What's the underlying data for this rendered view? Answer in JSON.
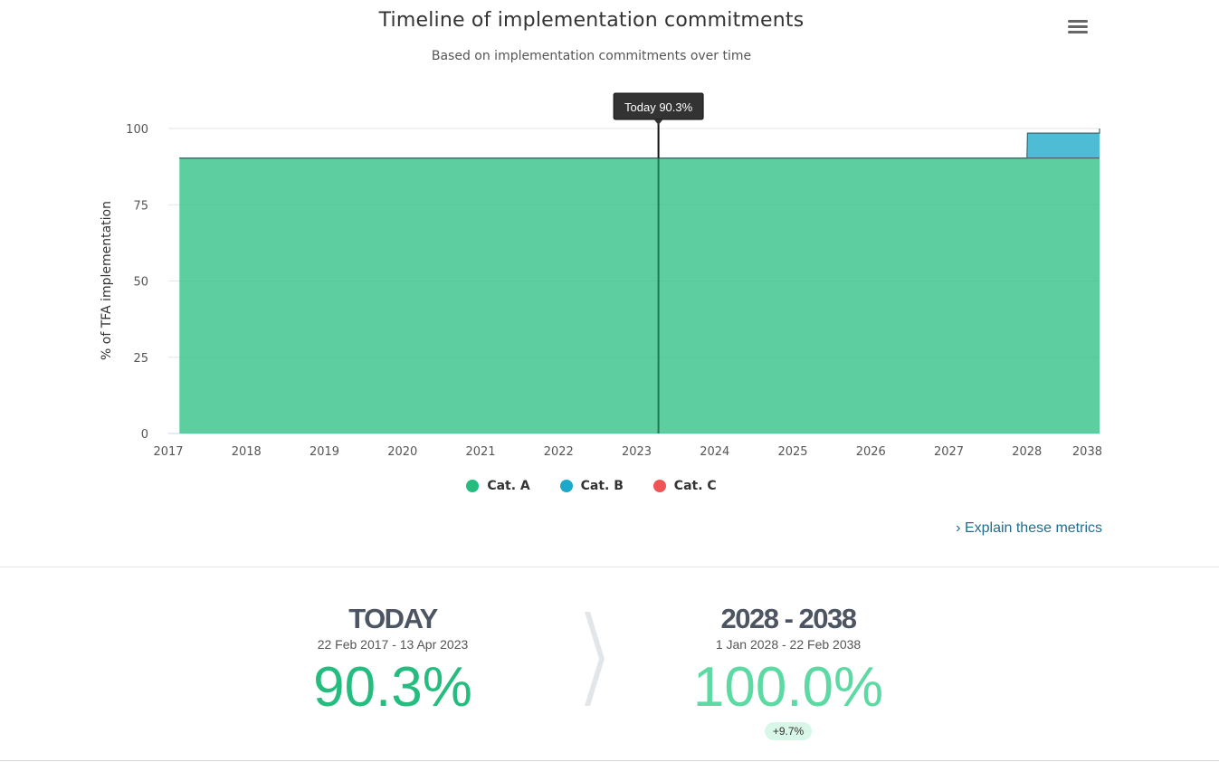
{
  "header": {
    "title": "Timeline of implementation commitments",
    "subtitle": "Based on implementation commitments over time",
    "menu_icon": "hamburger-menu-icon"
  },
  "chart_data": {
    "type": "area",
    "ylabel": "% of TFA implementation",
    "ylim": [
      0,
      100
    ],
    "yticks": [
      0,
      25,
      50,
      75,
      100
    ],
    "xtick_labels": [
      "2017",
      "2018",
      "2019",
      "2020",
      "2021",
      "2022",
      "2023",
      "2024",
      "2025",
      "2026",
      "2027",
      "2028",
      "2038"
    ],
    "grid": true,
    "stacked": true,
    "series": [
      {
        "name": "Cat. A",
        "color": "#25bd7f",
        "x": [
          "2017-02-22",
          "2028-01-01",
          "2038-02-22"
        ],
        "values": [
          90.3,
          90.3,
          90.3
        ]
      },
      {
        "name": "Cat. B",
        "color": "#1ca9c9",
        "x": [
          "2017-02-22",
          "2028-01-01",
          "2028-02-01",
          "2038-01-01",
          "2038-02-22"
        ],
        "values": [
          0,
          0,
          8.2,
          8.2,
          9.7
        ]
      },
      {
        "name": "Cat. C",
        "color": "#f05454",
        "x": [
          "2017-02-22",
          "2038-02-22"
        ],
        "values": [
          0,
          0
        ]
      }
    ],
    "today_marker": {
      "date": "2023-04-13",
      "label": "Today 90.3%"
    },
    "legend_position": "bottom"
  },
  "explain_link": {
    "arrow": "›",
    "label": "Explain these metrics"
  },
  "metrics": {
    "today": {
      "label": "TODAY",
      "range": "22 Feb 2017 - 13 Apr 2023",
      "value": "90.3%",
      "color": "#25bd7f"
    },
    "future": {
      "label": "2028 - 2038",
      "range": "1 Jan 2028 - 22 Feb 2038",
      "value": "100.0%",
      "color": "#5ddaa4",
      "delta": "+9.7%"
    }
  }
}
